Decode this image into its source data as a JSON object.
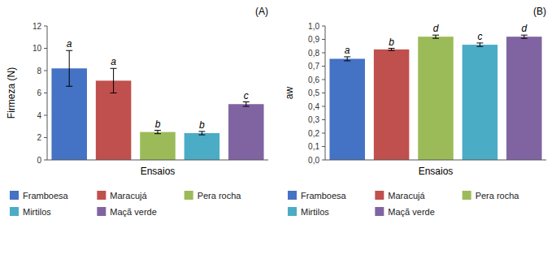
{
  "chart_data": [
    {
      "type": "bar",
      "title": "(A)",
      "xlabel": "Ensaios",
      "ylabel": "Firmeza (N)",
      "categories": [
        "Framboesa",
        "Maracujá",
        "Pera rocha",
        "Mirtilos",
        "Maçã verde"
      ],
      "values": [
        8.2,
        7.1,
        2.5,
        2.4,
        5.0
      ],
      "errors": [
        1.6,
        1.1,
        0.15,
        0.15,
        0.2
      ],
      "annotations": [
        "a",
        "a",
        "b",
        "b",
        "c"
      ],
      "colors": [
        "#4472C4",
        "#C0504D",
        "#9BBB59",
        "#4BACC6",
        "#8064A2"
      ],
      "ylim": [
        0,
        12
      ],
      "yticks": [
        0,
        2,
        4,
        6,
        8,
        10,
        12
      ],
      "grid": false,
      "legend": "bottom",
      "tick_labels": "y"
    },
    {
      "type": "bar",
      "title": "(B)",
      "xlabel": "Ensaios",
      "ylabel": "aw",
      "categories": [
        "Framboesa",
        "Maracujá",
        "Pera rocha",
        "Mirtilos",
        "Maçã verde"
      ],
      "values": [
        0.755,
        0.825,
        0.92,
        0.86,
        0.92
      ],
      "errors": [
        0.015,
        0.008,
        0.012,
        0.013,
        0.012
      ],
      "annotations": [
        "a",
        "b",
        "d",
        "c",
        "d"
      ],
      "colors": [
        "#4472C4",
        "#C0504D",
        "#9BBB59",
        "#4BACC6",
        "#8064A2"
      ],
      "ylim": [
        0,
        1.0
      ],
      "yticks": [
        {
          "value": 0.0,
          "label": "0,0"
        },
        {
          "value": 0.1,
          "label": "0,1"
        },
        {
          "value": 0.2,
          "label": "0,2"
        },
        {
          "value": 0.3,
          "label": "0,3"
        },
        {
          "value": 0.4,
          "label": "0,4"
        },
        {
          "value": 0.5,
          "label": "0,5"
        },
        {
          "value": 0.6,
          "label": "0,6"
        },
        {
          "value": 0.7,
          "label": "0,7"
        },
        {
          "value": 0.8,
          "label": "0,8"
        },
        {
          "value": 0.9,
          "label": "0,9"
        },
        {
          "value": 1.0,
          "label": "1,0"
        }
      ],
      "grid": false,
      "legend": "bottom",
      "tick_labels": "y"
    }
  ]
}
